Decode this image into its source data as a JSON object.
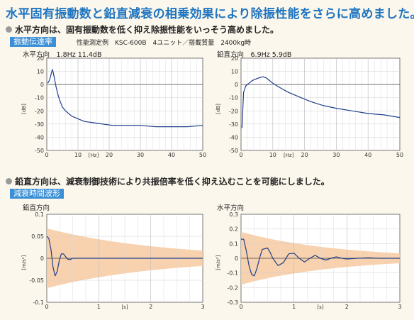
{
  "title": "水平固有振動数と鉛直減衰の相乗効果により除振性能をさらに高めました。",
  "section1": {
    "bullet": "水平方向は、固有振動数を低く抑え除振性能をいっそう高めました。",
    "tag": "振動伝達率",
    "condition": "性能測定例　KSC-600B　4ユニット／搭載質量　2400kg時"
  },
  "section2": {
    "bullet": "鉛直方向は、減衰制御技術により共振倍率を低く抑え込むことを可能にしました。",
    "tag": "減衰時間波形"
  },
  "colors": {
    "title": "#1e74c0",
    "tag_bg": "#3a8fd6",
    "line": "#1f3f8a",
    "envelope": "#f7c9a0",
    "plot_bg": "#ffffff"
  },
  "chart_data": [
    {
      "id": "tf-horizontal",
      "type": "line",
      "caption": "水平方向　1.8Hz 11.4dB",
      "xlabel": "[Hz]",
      "ylabel": "[dB]",
      "xlim": [
        0,
        50
      ],
      "ylim": [
        -50,
        20
      ],
      "xticks": [
        0,
        10,
        20,
        30,
        40,
        50
      ],
      "yticks": [
        20,
        10,
        0,
        -10,
        -20,
        -30,
        -40,
        -50
      ],
      "grid": true,
      "resonance": {
        "freq": 1.8,
        "gain_db": 11.4
      },
      "series": [
        {
          "x": [
            0.3,
            0.8,
            1.2,
            1.5,
            1.8,
            2.1,
            2.5,
            3,
            3.5,
            4,
            5,
            6,
            7,
            8,
            10,
            12,
            15,
            18,
            21,
            25,
            30,
            35,
            40,
            45,
            50
          ],
          "values": [
            1,
            3,
            6,
            9,
            11.4,
            9,
            4,
            -2,
            -7,
            -11,
            -17,
            -20,
            -22,
            -24,
            -26,
            -28,
            -29,
            -30,
            -31,
            -31,
            -31,
            -32,
            -32,
            -32,
            -31
          ]
        }
      ]
    },
    {
      "id": "tf-vertical",
      "type": "line",
      "caption": "鉛直方向　6.9Hz 5.9dB",
      "xlabel": "[Hz]",
      "ylabel": "[dB]",
      "xlim": [
        0,
        50
      ],
      "ylim": [
        -50,
        20
      ],
      "xticks": [
        0,
        10,
        20,
        30,
        40,
        50
      ],
      "yticks": [
        20,
        10,
        0,
        -10,
        -20,
        -30,
        -40,
        -50
      ],
      "grid": true,
      "resonance": {
        "freq": 6.9,
        "gain_db": 5.9
      },
      "series": [
        {
          "x": [
            0.3,
            0.8,
            1.5,
            2.5,
            3.5,
            4.5,
            5.5,
            6.9,
            8,
            9,
            10,
            12,
            15,
            18,
            22,
            26,
            30,
            35,
            40,
            45,
            50
          ],
          "values": [
            -33,
            -6,
            -1,
            1,
            3,
            4,
            5,
            5.9,
            5,
            3,
            1,
            -2,
            -6,
            -9,
            -13,
            -16,
            -18,
            -20,
            -22,
            -23,
            -25
          ]
        }
      ]
    },
    {
      "id": "decay-vertical",
      "type": "line",
      "caption": "鉛直方向",
      "xlabel": "[s]",
      "ylabel": "[m/s²]",
      "xlim": [
        0,
        3
      ],
      "ylim": [
        -0.1,
        0.1
      ],
      "xticks": [
        0,
        1,
        2,
        3
      ],
      "yticks": [
        0.1,
        0.05,
        0,
        -0.05,
        -0.1
      ],
      "ytick_labels": [
        "0.1",
        "0.05",
        "0",
        "-0.05",
        "-0.1"
      ],
      "grid": true,
      "envelope": {
        "amp0": 0.068,
        "tau": 2.2
      },
      "series": [
        {
          "x": [
            0,
            0.04,
            0.08,
            0.12,
            0.16,
            0.2,
            0.24,
            0.28,
            0.32,
            0.36,
            0.4,
            0.45,
            0.5,
            0.6,
            0.8,
            1.0,
            1.5,
            2.0,
            2.5,
            3.0
          ],
          "values": [
            0.05,
            0.045,
            0.02,
            -0.02,
            -0.04,
            -0.03,
            -0.005,
            0.01,
            0.01,
            0.004,
            -0.002,
            -0.003,
            0.0,
            0.0,
            0.0,
            0.0,
            0.0,
            0.0,
            0.0,
            0.0
          ]
        }
      ]
    },
    {
      "id": "decay-horizontal",
      "type": "line",
      "caption": "水平方向",
      "xlabel": "[s]",
      "ylabel": "[m/s²]",
      "xlim": [
        0,
        3
      ],
      "ylim": [
        -0.3,
        0.3
      ],
      "xticks": [
        0,
        1,
        2,
        3
      ],
      "yticks": [
        0.3,
        0.2,
        0.1,
        0,
        -0.1,
        -0.2,
        -0.3
      ],
      "ytick_labels": [
        "0.3",
        "0.2",
        "0.1",
        "0",
        "-0.1",
        "-0.2",
        "-0.3"
      ],
      "grid": true,
      "envelope": {
        "amp0": 0.18,
        "tau": 1.8
      },
      "series": [
        {
          "x": [
            0,
            0.05,
            0.1,
            0.15,
            0.2,
            0.25,
            0.3,
            0.35,
            0.4,
            0.5,
            0.55,
            0.6,
            0.7,
            0.8,
            0.85,
            0.9,
            1.0,
            1.1,
            1.2,
            1.3,
            1.4,
            1.5,
            1.6,
            1.7,
            1.8,
            1.9,
            2.0,
            2.2,
            2.4,
            2.6,
            2.8,
            3.0
          ],
          "values": [
            0.13,
            0.13,
            0.05,
            -0.05,
            -0.11,
            -0.12,
            -0.07,
            0.0,
            0.06,
            0.07,
            0.04,
            0.0,
            -0.05,
            -0.03,
            0.0,
            0.03,
            0.035,
            0.0,
            -0.025,
            0.0,
            0.02,
            0.0,
            -0.012,
            0.0,
            0.01,
            0.0,
            -0.005,
            0.0,
            0.003,
            0.0,
            0.0,
            0.0
          ]
        }
      ]
    }
  ]
}
